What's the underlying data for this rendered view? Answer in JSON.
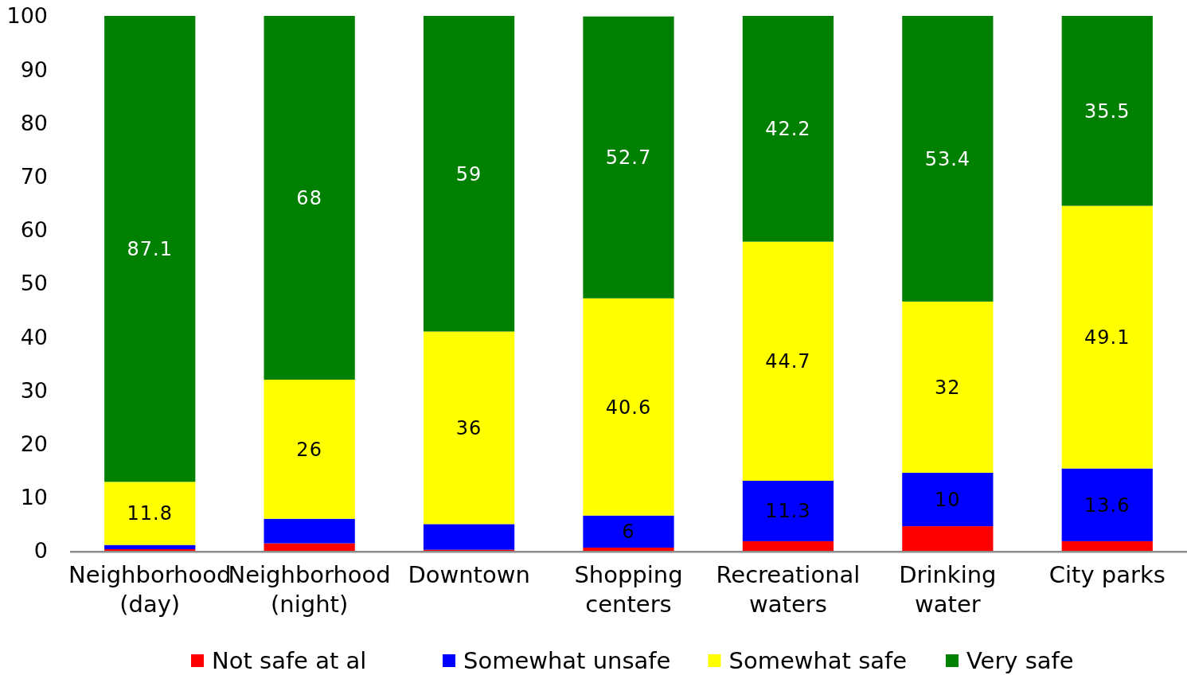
{
  "chart_data": {
    "type": "bar",
    "stacked": true,
    "categories": [
      "Neighborhood\n(day)",
      "Neighborhood\n(night)",
      "Downtown",
      "Shopping\ncenters",
      "Recreational\nwaters",
      "Drinking\nwater",
      "City parks"
    ],
    "series": [
      {
        "name": "Not safe at al",
        "color": "#ff0000",
        "values": [
          0.3,
          1.4,
          0.2,
          0.6,
          1.8,
          4.6,
          1.8
        ],
        "value_labels": [
          null,
          null,
          null,
          null,
          null,
          null,
          null
        ]
      },
      {
        "name": "Somewhat unsafe",
        "color": "#0000ff",
        "values": [
          0.8,
          4.6,
          4.8,
          6,
          11.3,
          10,
          13.6
        ],
        "value_labels": [
          null,
          null,
          null,
          "6",
          "11.3",
          "10",
          "13.6"
        ]
      },
      {
        "name": "Somewhat safe",
        "color": "#ffff00",
        "values": [
          11.8,
          26,
          36,
          40.6,
          44.7,
          32,
          49.1
        ],
        "value_labels": [
          "11.8",
          "26",
          "36",
          "40.6",
          "44.7",
          "32",
          "49.1"
        ]
      },
      {
        "name": "Very safe",
        "color": "#008000",
        "values": [
          87.1,
          68,
          59,
          52.7,
          42.2,
          53.4,
          35.5
        ],
        "value_labels": [
          "87.1",
          "68",
          "59",
          "52.7",
          "42.2",
          "53.4",
          "35.5"
        ]
      }
    ],
    "ylim": [
      0,
      100
    ],
    "yticks": [
      0,
      10,
      20,
      30,
      40,
      50,
      60,
      70,
      80,
      90,
      100
    ],
    "legend": "bottom"
  }
}
